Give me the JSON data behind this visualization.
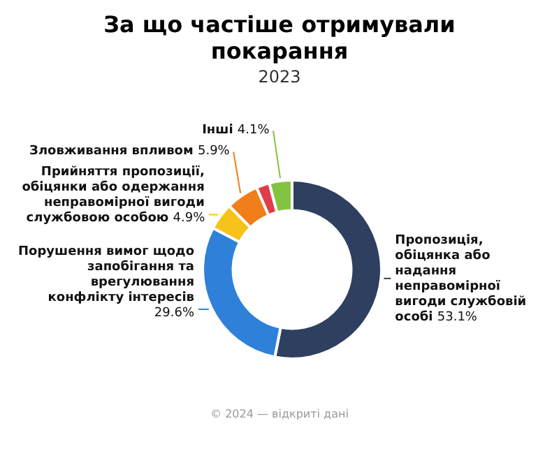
{
  "chart_data": {
    "type": "donut",
    "title": "За що частіше отримували покарання",
    "subtitle": "2023",
    "categories": [
      "Пропозиція, обіцянка або надання неправомірної вигоди службовій особі",
      "Порушення вимог щодо запобігання та врегулювання конфлікту інтересів",
      "Прийняття пропозиції, обіцянки або одержання неправомірної вигоди службовою особою",
      "Зловживання впливом",
      null,
      "Інші"
    ],
    "values": [
      53.1,
      29.6,
      4.9,
      5.9,
      2.4,
      4.1
    ],
    "colors": [
      "#2e3f5f",
      "#2f80d9",
      "#f7c21a",
      "#f07e1a",
      "#e03c4a",
      "#82c341"
    ],
    "value_labels": [
      "53.1%",
      "29.6%",
      "4.9%",
      "5.9%",
      null,
      "4.1%"
    ],
    "legend": false,
    "annotations": [
      "© 2024 — відкриті дані"
    ]
  }
}
